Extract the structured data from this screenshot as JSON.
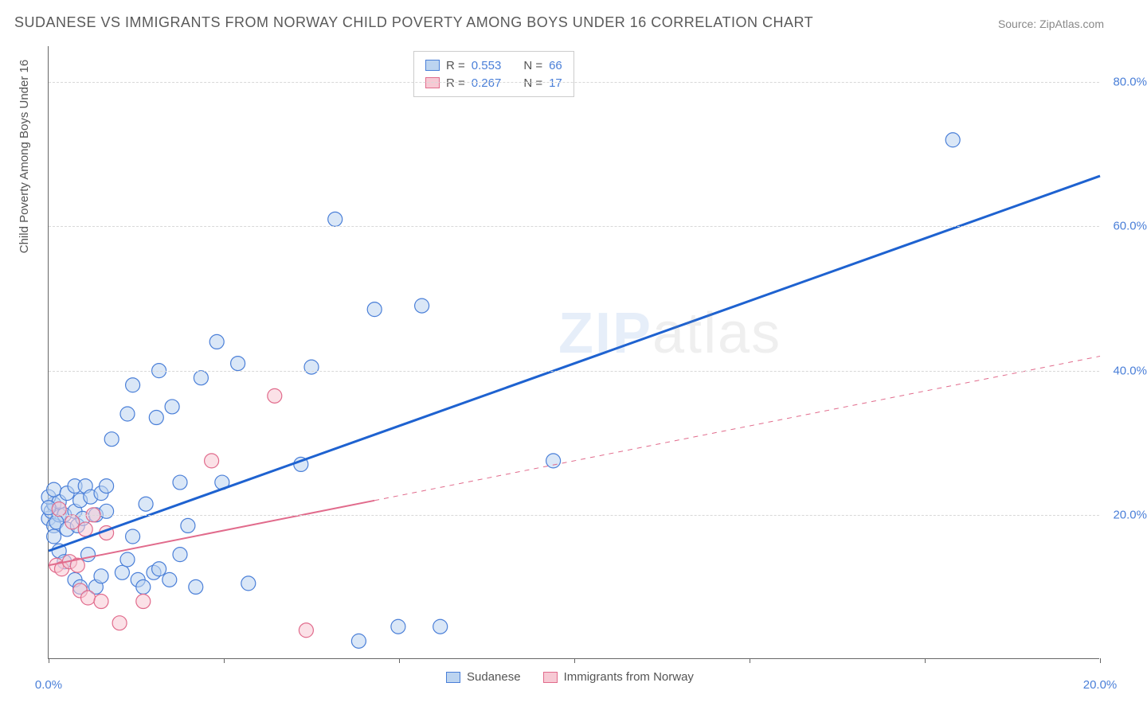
{
  "title": "SUDANESE VS IMMIGRANTS FROM NORWAY CHILD POVERTY AMONG BOYS UNDER 16 CORRELATION CHART",
  "source_label": "Source: ZipAtlas.com",
  "yaxis_title": "Child Poverty Among Boys Under 16",
  "watermark": {
    "left": "ZIP",
    "right": "atlas"
  },
  "chart": {
    "type": "scatter",
    "xlim": [
      0,
      20
    ],
    "ylim": [
      0,
      85
    ],
    "x_ticks": [
      0,
      3.33,
      6.66,
      10,
      13.33,
      16.66,
      20
    ],
    "x_tick_labels_shown": {
      "0": "0.0%",
      "20": "20.0%"
    },
    "y_ticks": [
      20,
      40,
      60,
      80
    ],
    "y_tick_labels": [
      "20.0%",
      "40.0%",
      "60.0%",
      "80.0%"
    ],
    "grid_color": "#d8d8d8",
    "axis_color": "#666666",
    "label_color": "#4a7fd8",
    "label_fontsize": 15,
    "title_fontsize": 18,
    "title_color": "#5a5a5a",
    "background_color": "#ffffff",
    "marker_radius": 9,
    "marker_stroke_width": 1.2,
    "series": [
      {
        "name": "Sudanese",
        "fill_color": "#bcd4f0",
        "stroke_color": "#4a7fd8",
        "fill_opacity": 0.55,
        "R": 0.553,
        "N": 66,
        "trend": {
          "x1": 0,
          "y1": 15,
          "x2": 20,
          "y2": 67,
          "solid_until_x": 20,
          "stroke_width": 3,
          "color": "#1e62d0"
        },
        "points": [
          [
            0.0,
            19.5
          ],
          [
            0.05,
            20.5
          ],
          [
            0.1,
            21.5
          ],
          [
            0.1,
            18.5
          ],
          [
            0.1,
            17.0
          ],
          [
            0.0,
            22.5
          ],
          [
            0.2,
            20.0
          ],
          [
            0.2,
            21.8
          ],
          [
            0.3,
            20.0
          ],
          [
            0.15,
            19.0
          ],
          [
            0.1,
            23.5
          ],
          [
            0.35,
            23.0
          ],
          [
            0.5,
            24.0
          ],
          [
            0.2,
            15.0
          ],
          [
            0.3,
            13.5
          ],
          [
            0.35,
            18.0
          ],
          [
            0.5,
            20.5
          ],
          [
            0.55,
            18.5
          ],
          [
            0.6,
            22.0
          ],
          [
            0.7,
            24.0
          ],
          [
            0.65,
            19.5
          ],
          [
            0.8,
            22.5
          ],
          [
            0.75,
            14.5
          ],
          [
            0.5,
            11.0
          ],
          [
            0.6,
            10.0
          ],
          [
            0.9,
            10.0
          ],
          [
            1.0,
            11.5
          ],
          [
            0.9,
            20.0
          ],
          [
            1.0,
            23.0
          ],
          [
            1.1,
            20.5
          ],
          [
            1.1,
            24.0
          ],
          [
            1.2,
            30.5
          ],
          [
            1.4,
            12.0
          ],
          [
            1.5,
            13.8
          ],
          [
            1.5,
            34.0
          ],
          [
            1.6,
            17.0
          ],
          [
            1.6,
            38.0
          ],
          [
            1.7,
            11.0
          ],
          [
            1.8,
            10.0
          ],
          [
            1.85,
            21.5
          ],
          [
            2.0,
            12.0
          ],
          [
            2.05,
            33.5
          ],
          [
            2.1,
            12.5
          ],
          [
            2.1,
            40.0
          ],
          [
            2.3,
            11.0
          ],
          [
            2.35,
            35.0
          ],
          [
            2.5,
            14.5
          ],
          [
            2.5,
            24.5
          ],
          [
            2.65,
            18.5
          ],
          [
            2.8,
            10.0
          ],
          [
            2.9,
            39.0
          ],
          [
            3.2,
            44.0
          ],
          [
            3.3,
            24.5
          ],
          [
            3.6,
            41.0
          ],
          [
            3.8,
            10.5
          ],
          [
            4.8,
            27.0
          ],
          [
            5.0,
            40.5
          ],
          [
            5.45,
            61.0
          ],
          [
            5.9,
            2.5
          ],
          [
            6.2,
            48.5
          ],
          [
            6.65,
            4.5
          ],
          [
            7.1,
            49.0
          ],
          [
            7.45,
            4.5
          ],
          [
            9.6,
            27.5
          ],
          [
            17.2,
            72.0
          ],
          [
            0.0,
            21.0
          ]
        ]
      },
      {
        "name": "Immigrants from Norway",
        "fill_color": "#f7c9d4",
        "stroke_color": "#e16b8c",
        "fill_opacity": 0.55,
        "R": 0.267,
        "N": 17,
        "trend": {
          "x1": 0,
          "y1": 13,
          "x2": 20,
          "y2": 42,
          "solid_until_x": 6.2,
          "stroke_width": 2,
          "color": "#e16b8c"
        },
        "points": [
          [
            0.15,
            13.0
          ],
          [
            0.2,
            20.8
          ],
          [
            0.25,
            12.5
          ],
          [
            0.4,
            13.5
          ],
          [
            0.45,
            19.0
          ],
          [
            0.55,
            13.0
          ],
          [
            0.6,
            9.5
          ],
          [
            0.7,
            18.0
          ],
          [
            0.75,
            8.5
          ],
          [
            0.85,
            20.0
          ],
          [
            1.0,
            8.0
          ],
          [
            1.1,
            17.5
          ],
          [
            1.35,
            5.0
          ],
          [
            1.8,
            8.0
          ],
          [
            3.1,
            27.5
          ],
          [
            4.3,
            36.5
          ],
          [
            4.9,
            4.0
          ]
        ]
      }
    ]
  },
  "legend_top": {
    "rows": [
      {
        "swatch": "blue",
        "r_label": "R =",
        "r_value": "0.553",
        "n_label": "N =",
        "n_value": "66"
      },
      {
        "swatch": "pink",
        "r_label": "R =",
        "r_value": "0.267",
        "n_label": "N =",
        "n_value": "17"
      }
    ]
  },
  "legend_bottom": {
    "items": [
      {
        "swatch": "blue",
        "label": "Sudanese"
      },
      {
        "swatch": "pink",
        "label": "Immigrants from Norway"
      }
    ]
  }
}
